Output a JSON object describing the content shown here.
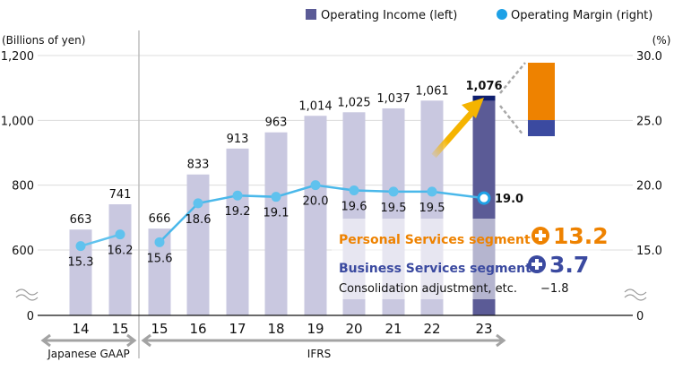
{
  "chart_data": {
    "type": "bar",
    "title": "",
    "legend": {
      "position": "top-right",
      "items": [
        {
          "name": "Operating Income (left)",
          "marker": "square",
          "color": "#5b5b96"
        },
        {
          "name": "Operating Margin (right)",
          "marker": "circle",
          "color": "#1ea1e6"
        }
      ]
    },
    "ylabel_left": "(Billions of yen)",
    "ylabel_right": "(%)",
    "left_ticks": [
      "0",
      "600",
      "800",
      "1,000",
      "1,200"
    ],
    "right_ticks": [
      "0",
      "15.0",
      "20.0",
      "25.0",
      "30.0"
    ],
    "ylim_left": [
      600,
      1200
    ],
    "ylim_right": [
      15.0,
      30.0
    ],
    "axis_break": true,
    "grid": true,
    "categories": [
      "14",
      "15",
      "15",
      "16",
      "17",
      "18",
      "19",
      "20",
      "21",
      "22",
      "23"
    ],
    "groups": [
      {
        "label": "Japanese GAAP",
        "from": 0,
        "to": 1
      },
      {
        "label": "IFRS",
        "from": 2,
        "to": 10
      }
    ],
    "series": [
      {
        "name": "Operating Income (left)",
        "type": "bar",
        "axis": "left",
        "values": [
          663,
          741,
          666,
          833,
          913,
          963,
          1014,
          1025,
          1037,
          1061,
          1076
        ],
        "labels": [
          "663",
          "741",
          "666",
          "833",
          "913",
          "963",
          "1,014",
          "1,025",
          "1,037",
          "1,061",
          "1,076"
        ]
      },
      {
        "name": "Operating Margin (right)",
        "type": "line",
        "axis": "right",
        "values": [
          15.3,
          16.2,
          15.6,
          18.6,
          19.2,
          19.1,
          20.0,
          19.6,
          19.5,
          19.5,
          19.0
        ],
        "labels": [
          "15.3",
          "16.2",
          "15.6",
          "18.6",
          "19.2",
          "19.1",
          "20.0",
          "19.6",
          "19.5",
          "19.5",
          "19.0"
        ],
        "segments": [
          [
            0,
            1
          ],
          [
            2,
            10
          ]
        ]
      }
    ],
    "annotations": {
      "personal": {
        "label": "Personal Services segment",
        "value": "13.2",
        "color": "#ee8200"
      },
      "business": {
        "label": "Business Services segment",
        "value": "3.7",
        "color": "#3b4aa0"
      },
      "consolidation": {
        "label": "Consolidation adjustment, etc.",
        "value": "−1.8"
      },
      "breakdown_bar": {
        "personal": 13.2,
        "business": 3.7
      }
    }
  }
}
